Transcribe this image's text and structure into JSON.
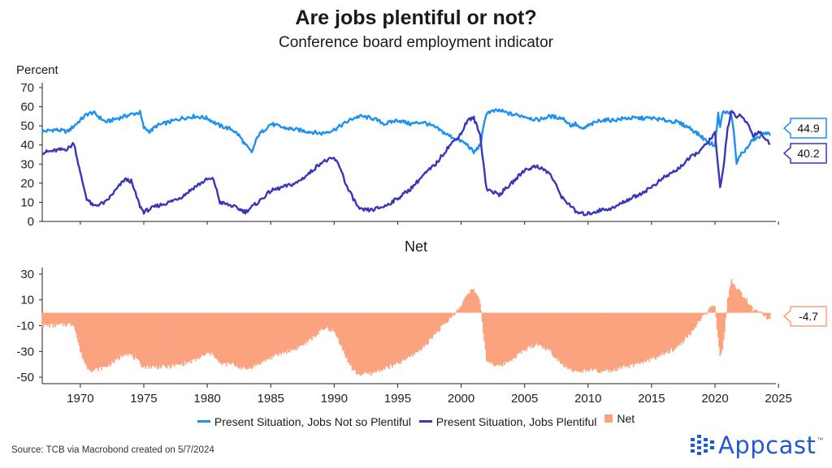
{
  "title": "Are jobs plentiful or not?",
  "subtitle": "Conference board employment indicator",
  "source": "Source: TCB via Macrobond created on 5/7/2024",
  "logo_text": "Appcast",
  "logo_mark": "™",
  "colors": {
    "not_plentiful": "#1e90ee",
    "plentiful": "#3a36b8",
    "net": "#fba27f"
  },
  "legend": [
    {
      "label": "Present Situation, Jobs Not so Plentiful",
      "color": "#1e90ee",
      "kind": "line"
    },
    {
      "label": "Present Situation, Jobs Plentiful",
      "color": "#3a36b8",
      "kind": "line"
    },
    {
      "label": "Net",
      "color": "#fba27f",
      "kind": "box"
    }
  ],
  "chart_data": [
    {
      "type": "line",
      "title": "",
      "ylabel": "Percent",
      "ylim": [
        0,
        70
      ],
      "yticks": [
        0,
        10,
        20,
        30,
        40,
        50,
        60,
        70
      ],
      "xlim": [
        1967.0,
        2024.8
      ],
      "xticks": [
        1970,
        1975,
        1980,
        1985,
        1990,
        1995,
        2000,
        2005,
        2010,
        2015,
        2020,
        2025
      ],
      "last_values": [
        "44.9",
        "40.2"
      ],
      "series": [
        {
          "name": "Present Situation, Jobs Not so Plentiful",
          "color": "#1e90ee",
          "x": [
            1967.0,
            1968.0,
            1969.0,
            1969.5,
            1970.0,
            1970.5,
            1971.0,
            1972.0,
            1973.0,
            1974.0,
            1974.7,
            1975.0,
            1975.5,
            1976.0,
            1977.0,
            1978.0,
            1979.0,
            1980.0,
            1980.5,
            1981.0,
            1982.0,
            1982.5,
            1983.0,
            1983.5,
            1984.0,
            1985.0,
            1986.0,
            1987.0,
            1988.0,
            1989.0,
            1990.0,
            1990.5,
            1991.0,
            1991.5,
            1992.0,
            1993.0,
            1994.0,
            1995.0,
            1996.0,
            1997.0,
            1998.0,
            1999.0,
            2000.0,
            2000.5,
            2001.0,
            2001.5,
            2002.0,
            2003.0,
            2004.0,
            2005.0,
            2006.0,
            2007.0,
            2008.0,
            2008.7,
            2009.0,
            2009.5,
            2010.0,
            2011.0,
            2012.0,
            2013.0,
            2014.0,
            2015.0,
            2016.0,
            2017.0,
            2018.0,
            2019.0,
            2019.5,
            2020.0,
            2020.25,
            2020.4,
            2020.6,
            2021.0,
            2021.3,
            2021.5,
            2021.7,
            2022.0,
            2022.5,
            2023.0,
            2023.5,
            2024.0,
            2024.33
          ],
          "values": [
            47,
            48,
            47,
            50,
            53,
            56,
            57,
            52,
            54,
            56,
            57,
            49,
            47,
            50,
            52,
            54,
            55,
            54,
            52,
            50,
            48,
            45,
            40,
            36,
            45,
            51,
            49,
            48,
            47,
            46,
            48,
            50,
            52,
            54,
            55,
            54,
            51,
            53,
            51,
            52,
            49,
            45,
            42,
            40,
            36,
            40,
            57,
            58,
            56,
            55,
            53,
            55,
            54,
            50,
            51,
            48,
            50,
            53,
            53,
            54,
            54,
            54,
            53,
            52,
            49,
            44,
            41,
            40,
            56,
            50,
            57,
            57,
            56,
            45,
            30,
            35,
            38,
            43,
            44,
            47,
            44.9
          ]
        },
        {
          "name": "Present Situation, Jobs Plentiful",
          "color": "#3a36b8",
          "x": [
            1967.0,
            1968.0,
            1969.0,
            1969.5,
            1970.0,
            1970.5,
            1971.0,
            1972.0,
            1973.0,
            1973.5,
            1974.0,
            1974.7,
            1975.0,
            1976.0,
            1977.0,
            1978.0,
            1979.0,
            1980.0,
            1980.5,
            1981.0,
            1982.0,
            1983.0,
            1984.0,
            1985.0,
            1986.0,
            1987.0,
            1988.0,
            1989.0,
            1990.0,
            1990.5,
            1991.0,
            1991.5,
            1992.0,
            1993.0,
            1994.0,
            1995.0,
            1996.0,
            1997.0,
            1998.0,
            1999.0,
            2000.0,
            2000.5,
            2001.0,
            2001.5,
            2002.0,
            2003.0,
            2004.0,
            2005.0,
            2006.0,
            2007.0,
            2008.0,
            2008.7,
            2009.0,
            2009.5,
            2010.0,
            2011.0,
            2012.0,
            2013.0,
            2014.0,
            2015.0,
            2016.0,
            2017.0,
            2018.0,
            2019.0,
            2019.5,
            2020.0,
            2020.25,
            2020.4,
            2020.6,
            2021.0,
            2021.3,
            2021.7,
            2022.0,
            2022.5,
            2023.0,
            2023.5,
            2024.0,
            2024.33
          ],
          "values": [
            36,
            37,
            38,
            41,
            25,
            12,
            8,
            10,
            18,
            22,
            21,
            8,
            5,
            8,
            10,
            13,
            18,
            22,
            22,
            10,
            8,
            5,
            10,
            16,
            18,
            20,
            25,
            31,
            33,
            28,
            18,
            12,
            6,
            6,
            8,
            12,
            17,
            24,
            30,
            39,
            46,
            53,
            54,
            45,
            17,
            14,
            20,
            27,
            29,
            25,
            12,
            8,
            5,
            4,
            4,
            6,
            7,
            11,
            14,
            18,
            23,
            27,
            33,
            38,
            42,
            46,
            28,
            18,
            25,
            49,
            57,
            55,
            55,
            52,
            45,
            47,
            43,
            40.2
          ]
        }
      ]
    },
    {
      "type": "bar",
      "title": "Net",
      "ylim": [
        -55,
        35
      ],
      "yticks": [
        30,
        10,
        -10,
        -30,
        -50
      ],
      "xticks": [
        1970,
        1975,
        1980,
        1985,
        1990,
        1995,
        2000,
        2005,
        2010,
        2015,
        2020,
        2025
      ],
      "last_value": "-4.7",
      "series": [
        {
          "name": "Net",
          "color": "#fba27f",
          "x": [
            1967.0,
            1968.0,
            1969.0,
            1969.5,
            1970.0,
            1970.5,
            1971.0,
            1972.0,
            1973.0,
            1973.5,
            1974.0,
            1975.0,
            1976.0,
            1977.0,
            1978.0,
            1979.0,
            1980.0,
            1980.5,
            1981.0,
            1982.0,
            1983.0,
            1984.0,
            1985.0,
            1986.0,
            1987.0,
            1988.0,
            1989.0,
            1989.5,
            1990.0,
            1990.5,
            1991.0,
            1991.5,
            1992.0,
            1993.0,
            1994.0,
            1995.0,
            1996.0,
            1997.0,
            1998.0,
            1999.0,
            2000.0,
            2000.5,
            2001.0,
            2001.5,
            2002.0,
            2003.0,
            2004.0,
            2005.0,
            2006.0,
            2007.0,
            2008.0,
            2008.5,
            2009.0,
            2009.5,
            2010.0,
            2011.0,
            2012.0,
            2013.0,
            2014.0,
            2015.0,
            2016.0,
            2017.0,
            2018.0,
            2019.0,
            2019.5,
            2020.0,
            2020.25,
            2020.4,
            2020.6,
            2021.0,
            2021.3,
            2021.7,
            2022.0,
            2022.5,
            2023.0,
            2023.5,
            2024.0,
            2024.33
          ],
          "values": [
            -10,
            -10,
            -9,
            -9,
            -30,
            -42,
            -45,
            -42,
            -36,
            -31,
            -33,
            -42,
            -42,
            -42,
            -40,
            -37,
            -32,
            -32,
            -40,
            -40,
            -44,
            -40,
            -35,
            -31,
            -28,
            -22,
            -14,
            -12,
            -15,
            -24,
            -36,
            -45,
            -48,
            -47,
            -43,
            -40,
            -34,
            -27,
            -16,
            -6,
            5,
            16,
            18,
            8,
            -37,
            -42,
            -36,
            -29,
            -24,
            -30,
            -40,
            -43,
            -46,
            -46,
            -44,
            -46,
            -45,
            -42,
            -40,
            -36,
            -32,
            -27,
            -17,
            -4,
            2,
            5,
            -20,
            -35,
            -30,
            10,
            26,
            18,
            16,
            10,
            2,
            2,
            -4,
            -4.7
          ]
        }
      ]
    }
  ]
}
